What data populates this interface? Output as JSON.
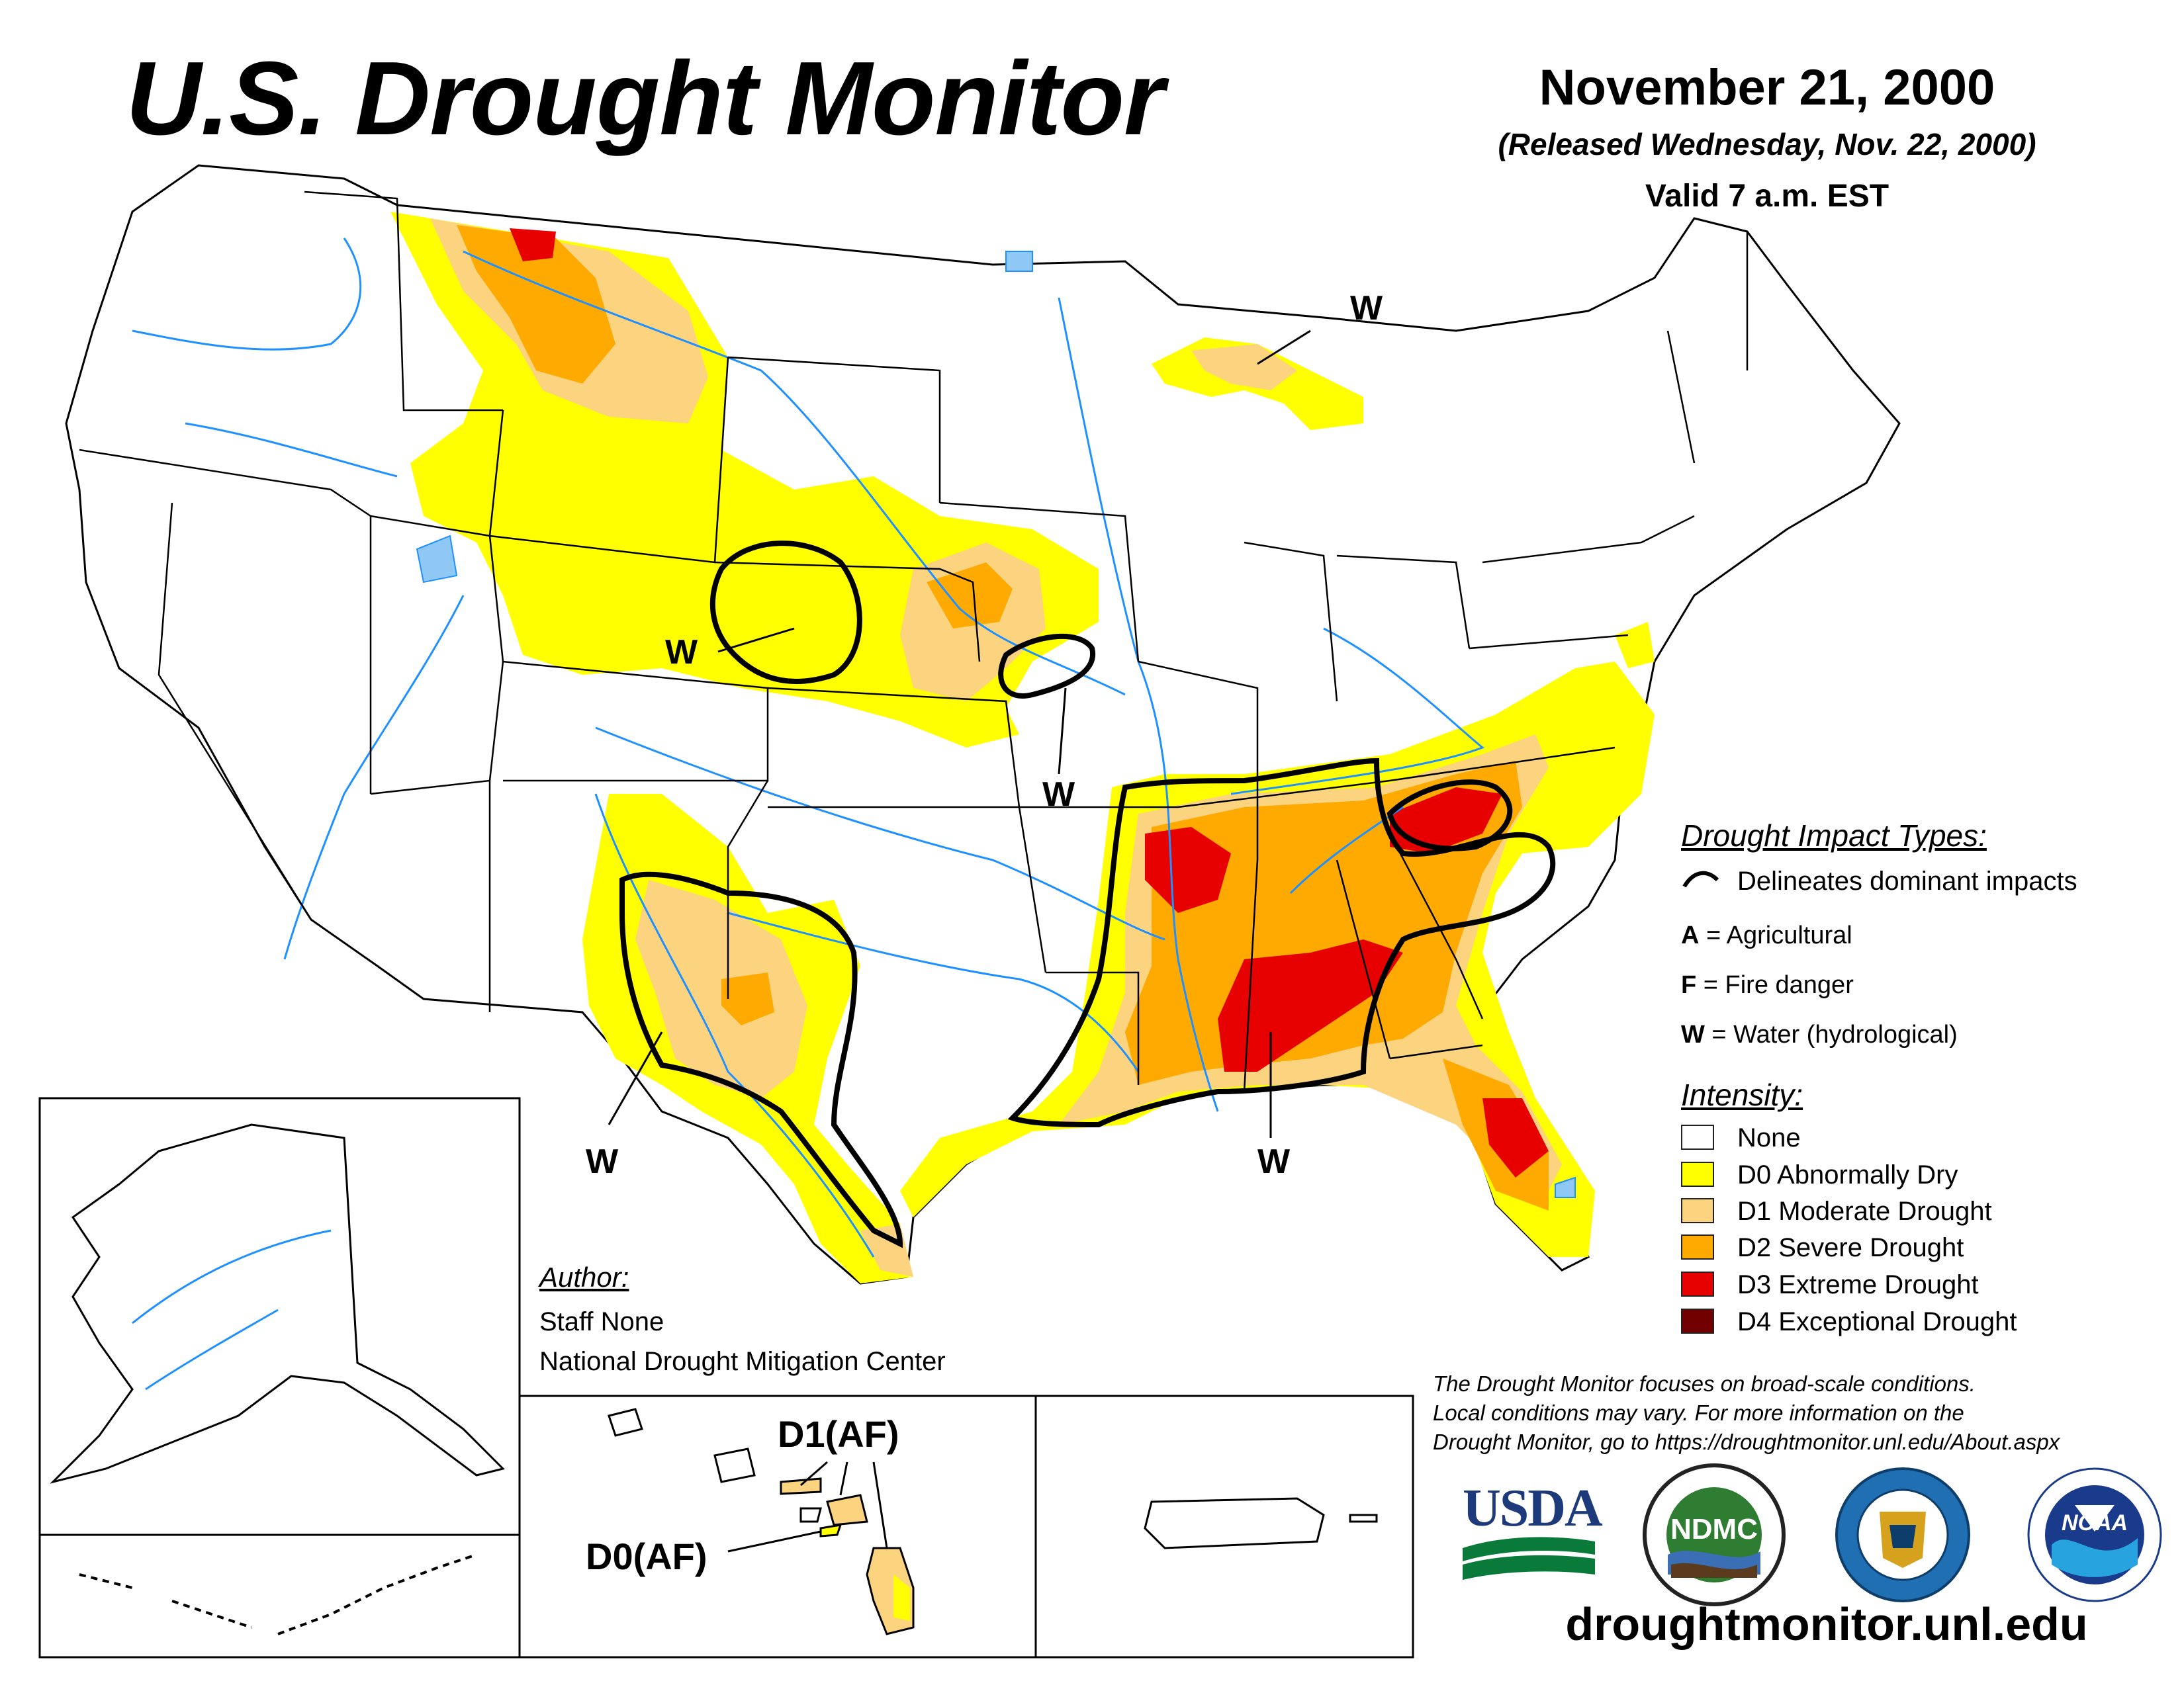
{
  "header": {
    "title": "U.S. Drought Monitor",
    "date": "November 21, 2000",
    "released": "(Released Wednesday, Nov. 22, 2000)",
    "valid": "Valid 7 a.m. EST"
  },
  "impact_labels": [
    {
      "id": "w-michigan",
      "text": "W"
    },
    {
      "id": "w-kansas",
      "text": "W"
    },
    {
      "id": "w-missouri",
      "text": "W"
    },
    {
      "id": "w-newmexico",
      "text": "W"
    },
    {
      "id": "w-south",
      "text": "W"
    }
  ],
  "hawaii_labels": {
    "d1": "D1(AF)",
    "d0": "D0(AF)"
  },
  "legend": {
    "impact_title": "Drought Impact Types:",
    "delineates": "Delineates dominant impacts",
    "impact_types": [
      {
        "code": "A",
        "desc": " = Agricultural"
      },
      {
        "code": "F",
        "desc": " = Fire danger"
      },
      {
        "code": "W",
        "desc": " = Water (hydrological)"
      }
    ],
    "intensity_title": "Intensity:",
    "intensity": [
      {
        "label": "None",
        "color": "#ffffff"
      },
      {
        "label": "D0 Abnormally Dry",
        "color": "#ffff00"
      },
      {
        "label": "D1 Moderate Drought",
        "color": "#fcd37f"
      },
      {
        "label": "D2 Severe Drought",
        "color": "#ffaa00"
      },
      {
        "label": "D3 Extreme Drought",
        "color": "#e60000"
      },
      {
        "label": "D4 Exceptional Drought",
        "color": "#730000"
      }
    ]
  },
  "author": {
    "heading": "Author:",
    "name": "Staff None",
    "org": "National Drought Mitigation Center"
  },
  "disclaimer": {
    "line1": "The Drought Monitor focuses on broad-scale conditions.",
    "line2": "Local conditions may vary. For more information on the",
    "line3": "Drought Monitor, go to https://droughtmonitor.unl.edu/About.aspx"
  },
  "logos": {
    "usda": "USDA",
    "ndmc": "NDMC",
    "noaa": "NOAA"
  },
  "url": "droughtmonitor.unl.edu",
  "colors": {
    "river": "#1e90ff",
    "lake": "#8fc8f5"
  }
}
